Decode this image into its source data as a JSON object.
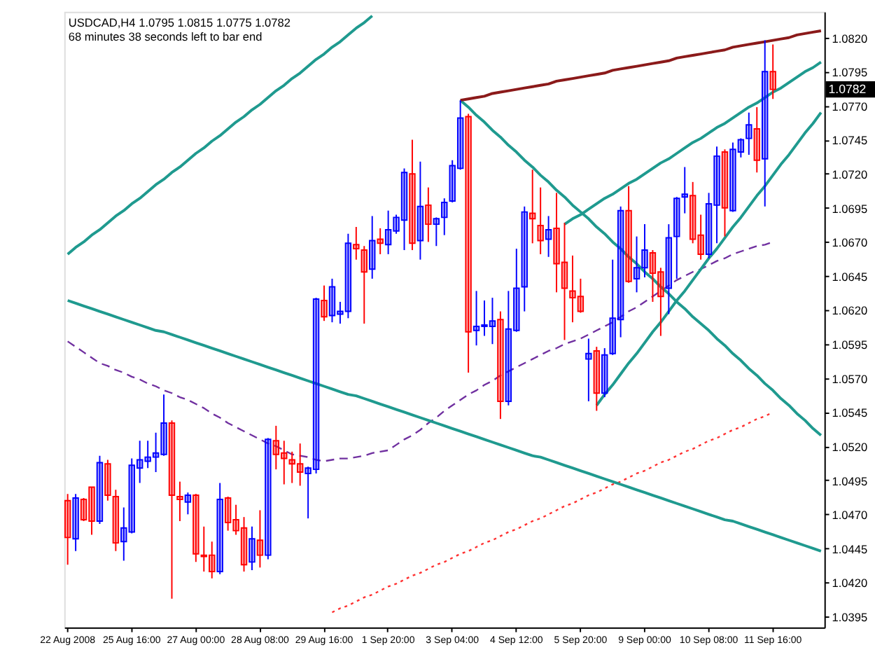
{
  "chart_data": {
    "type": "candlestick",
    "title": "USDCAD,H4 1.0795 1.0815 1.0775 1.0782",
    "subtitle": "68 minutes 38 seconds left to bar end",
    "categories": [
      "22 Aug 2008",
      null,
      null,
      null,
      null,
      null,
      null,
      null,
      "25 Aug 16:00",
      null,
      null,
      null,
      null,
      null,
      null,
      null,
      "27 Aug 00:00",
      null,
      null,
      null,
      null,
      null,
      null,
      null,
      "28 Aug 08:00",
      null,
      null,
      null,
      null,
      null,
      null,
      null,
      "29 Aug 16:00",
      null,
      null,
      null,
      null,
      null,
      null,
      null,
      "1 Sep 20:00",
      null,
      null,
      null,
      null,
      null,
      null,
      null,
      "3 Sep 04:00",
      null,
      null,
      null,
      null,
      null,
      null,
      null,
      "4 Sep 12:00",
      null,
      null,
      null,
      null,
      null,
      null,
      null,
      "5 Sep 20:00",
      null,
      null,
      null,
      null,
      null,
      null,
      null,
      "9 Sep 00:00",
      null,
      null,
      null,
      null,
      null,
      null,
      null,
      "10 Sep 08:00",
      null,
      null,
      null,
      null,
      null,
      null,
      null,
      "11 Sep 16:00",
      null,
      null,
      null,
      null,
      null,
      null
    ],
    "ohlc": [
      [
        1.048,
        1.0485,
        1.0433,
        1.0453
      ],
      [
        1.0452,
        1.0485,
        1.0443,
        1.0482
      ],
      [
        1.0481,
        1.0482,
        1.0465,
        1.0466
      ],
      [
        1.049,
        1.049,
        1.0455,
        1.0465
      ],
      [
        1.0465,
        1.0513,
        1.0463,
        1.0508
      ],
      [
        1.0507,
        1.051,
        1.048,
        1.0484
      ],
      [
        1.0483,
        1.0488,
        1.0443,
        1.0449
      ],
      [
        1.045,
        1.0475,
        1.0436,
        1.046
      ],
      [
        1.0457,
        1.0511,
        1.0456,
        1.0506
      ],
      [
        1.0504,
        1.0524,
        1.0493,
        1.051
      ],
      [
        1.0509,
        1.0524,
        1.0504,
        1.0512
      ],
      [
        1.0512,
        1.053,
        1.0501,
        1.0515
      ],
      [
        1.0514,
        1.0558,
        1.0513,
        1.0537
      ],
      [
        1.0537,
        1.0539,
        1.0408,
        1.0484
      ],
      [
        1.0483,
        1.0494,
        1.0465,
        1.0481
      ],
      [
        1.0479,
        1.0486,
        1.047,
        1.0484
      ],
      [
        1.0484,
        1.0485,
        1.0435,
        1.0441
      ],
      [
        1.044,
        1.0461,
        1.0428,
        1.0439
      ],
      [
        1.044,
        1.045,
        1.0423,
        1.0428
      ],
      [
        1.0428,
        1.0493,
        1.0426,
        1.0481
      ],
      [
        1.0482,
        1.0483,
        1.0458,
        1.0464
      ],
      [
        1.0466,
        1.0477,
        1.0455,
        1.0458
      ],
      [
        1.046,
        1.0468,
        1.0428,
        1.0433
      ],
      [
        1.0435,
        1.0461,
        1.0429,
        1.0452
      ],
      [
        1.0451,
        1.0473,
        1.0431,
        1.044
      ],
      [
        1.044,
        1.0526,
        1.0437,
        1.0525
      ],
      [
        1.0524,
        1.0535,
        1.0503,
        1.0514
      ],
      [
        1.0515,
        1.0524,
        1.0492,
        1.0511
      ],
      [
        1.051,
        1.0516,
        1.0493,
        1.0507
      ],
      [
        1.0507,
        1.0522,
        1.0491,
        1.0501
      ],
      [
        1.05,
        1.0505,
        1.0467,
        1.0504
      ],
      [
        1.0503,
        1.0629,
        1.05,
        1.0628
      ],
      [
        1.0627,
        1.0638,
        1.0612,
        1.0615
      ],
      [
        1.0616,
        1.0643,
        1.0611,
        1.0637
      ],
      [
        1.0617,
        1.0626,
        1.061,
        1.0619
      ],
      [
        1.0619,
        1.0676,
        1.0614,
        1.0669
      ],
      [
        1.0668,
        1.0681,
        1.0657,
        1.0665
      ],
      [
        1.0664,
        1.0667,
        1.061,
        1.0648
      ],
      [
        1.065,
        1.0689,
        1.0643,
        1.0671
      ],
      [
        1.0672,
        1.068,
        1.0661,
        1.0669
      ],
      [
        1.0668,
        1.0693,
        1.0661,
        1.0679
      ],
      [
        1.0678,
        1.069,
        1.0676,
        1.0688
      ],
      [
        1.0686,
        1.0724,
        1.0664,
        1.0721
      ],
      [
        1.072,
        1.0745,
        1.0664,
        1.0669
      ],
      [
        1.0671,
        1.0729,
        1.0657,
        1.0696
      ],
      [
        1.0697,
        1.071,
        1.067,
        1.0683
      ],
      [
        1.0683,
        1.0688,
        1.0667,
        1.0687
      ],
      [
        1.0688,
        1.0702,
        1.0675,
        1.0699
      ],
      [
        1.07,
        1.073,
        1.0699,
        1.0726
      ],
      [
        1.0724,
        1.0774,
        1.0723,
        1.0761
      ],
      [
        1.0762,
        1.0764,
        1.0574,
        1.0604
      ],
      [
        1.0605,
        1.0634,
        1.0594,
        1.0608
      ],
      [
        1.0608,
        1.0627,
        1.0601,
        1.0609
      ],
      [
        1.0608,
        1.0629,
        1.0595,
        1.0612
      ],
      [
        1.0613,
        1.0619,
        1.054,
        1.0553
      ],
      [
        1.0553,
        1.0634,
        1.055,
        1.0606
      ],
      [
        1.0605,
        1.0665,
        1.0604,
        1.0636
      ],
      [
        1.0637,
        1.0696,
        1.0619,
        1.0692
      ],
      [
        1.0691,
        1.0723,
        1.0669,
        1.0687
      ],
      [
        1.0682,
        1.071,
        1.0661,
        1.0671
      ],
      [
        1.0672,
        1.0689,
        1.0659,
        1.0679
      ],
      [
        1.068,
        1.0706,
        1.0633,
        1.0654
      ],
      [
        1.0655,
        1.0684,
        1.0598,
        1.0636
      ],
      [
        1.0634,
        1.066,
        1.0611,
        1.0629
      ],
      [
        1.063,
        1.0643,
        1.0618,
        1.0619
      ],
      [
        1.0584,
        1.0599,
        1.0553,
        1.0588
      ],
      [
        1.059,
        1.0593,
        1.0546,
        1.0559
      ],
      [
        1.0559,
        1.0592,
        1.0556,
        1.0587
      ],
      [
        1.0588,
        1.0657,
        1.0587,
        1.0614
      ],
      [
        1.0613,
        1.0696,
        1.06,
        1.0693
      ],
      [
        1.0693,
        1.0711,
        1.064,
        1.0641
      ],
      [
        1.0643,
        1.0674,
        1.0633,
        1.0651
      ],
      [
        1.0651,
        1.0683,
        1.0644,
        1.0664
      ],
      [
        1.0662,
        1.0664,
        1.0626,
        1.0647
      ],
      [
        1.0648,
        1.0651,
        1.0601,
        1.063
      ],
      [
        1.0636,
        1.0683,
        1.0617,
        1.0673
      ],
      [
        1.0674,
        1.0703,
        1.0643,
        1.0702
      ],
      [
        1.0703,
        1.0725,
        1.0691,
        1.0705
      ],
      [
        1.0704,
        1.0714,
        1.0669,
        1.0672
      ],
      [
        1.0675,
        1.069,
        1.0657,
        1.0661
      ],
      [
        1.0661,
        1.0706,
        1.0658,
        1.0698
      ],
      [
        1.0697,
        1.074,
        1.0669,
        1.0733
      ],
      [
        1.0736,
        1.0738,
        1.0674,
        1.0695
      ],
      [
        1.0693,
        1.0743,
        1.0692,
        1.0738
      ],
      [
        1.0736,
        1.0746,
        1.0732,
        1.0745
      ],
      [
        1.0746,
        1.0765,
        1.0734,
        1.0756
      ],
      [
        1.0753,
        1.0769,
        1.0721,
        1.073
      ],
      [
        1.0731,
        1.0818,
        1.0696,
        1.0795
      ],
      [
        1.0795,
        1.0815,
        1.0775,
        1.0782
      ],
      null,
      null,
      null,
      null,
      null,
      null
    ],
    "colors": [
      "#ff0000",
      "#0000ff",
      "#ff0000",
      "#ff0000",
      "#0000ff",
      "#ff0000",
      "#ff0000",
      "#0000ff",
      "#0000ff",
      "#0000ff",
      "#0000ff",
      "#0000ff",
      "#0000ff",
      "#ff0000",
      "#ff0000",
      "#0000ff",
      "#ff0000",
      "#ff0000",
      "#ff0000",
      "#0000ff",
      "#ff0000",
      "#ff0000",
      "#ff0000",
      "#0000ff",
      "#ff0000",
      "#0000ff",
      "#ff0000",
      "#ff0000",
      "#ff0000",
      "#ff0000",
      "#0000ff",
      "#0000ff",
      "#ff0000",
      "#0000ff",
      "#0000ff",
      "#0000ff",
      "#ff0000",
      "#ff0000",
      "#0000ff",
      "#ff0000",
      "#0000ff",
      "#0000ff",
      "#0000ff",
      "#ff0000",
      "#0000ff",
      "#ff0000",
      "#0000ff",
      "#0000ff",
      "#0000ff",
      "#0000ff",
      "#ff0000",
      "#0000ff",
      "#0000ff",
      "#0000ff",
      "#ff0000",
      "#0000ff",
      "#0000ff",
      "#0000ff",
      "#ff0000",
      "#ff0000",
      "#0000ff",
      "#ff0000",
      "#ff0000",
      "#ff0000",
      "#ff0000",
      "#0000ff",
      "#ff0000",
      "#0000ff",
      "#0000ff",
      "#0000ff",
      "#ff0000",
      "#0000ff",
      "#0000ff",
      "#ff0000",
      "#ff0000",
      "#0000ff",
      "#0000ff",
      "#0000ff",
      "#ff0000",
      "#ff0000",
      "#0000ff",
      "#0000ff",
      "#ff0000",
      "#0000ff",
      "#0000ff",
      "#0000ff",
      "#ff0000",
      "#0000ff",
      "#ff0000",
      null,
      null,
      null,
      null,
      null,
      null
    ],
    "series": [
      {
        "type": "line",
        "color": "#7030a0",
        "line_style": "dashed",
        "values": [
          1.0597,
          1.0593,
          1.0589,
          1.0585,
          1.0581,
          1.0579,
          1.0576,
          1.0574,
          1.0571,
          1.0569,
          1.0566,
          1.0564,
          1.0561,
          1.0559,
          1.0556,
          1.0554,
          1.0551,
          1.0548,
          1.0544,
          1.0541,
          1.0537,
          1.0534,
          1.0531,
          1.0528,
          1.0525,
          1.0522,
          1.052,
          1.0517,
          1.0514,
          1.0513,
          1.0512,
          1.051,
          1.0509,
          1.051,
          1.0511,
          1.0511,
          1.0512,
          1.0513,
          1.0515,
          1.0516,
          1.0517,
          1.0521,
          1.0525,
          1.0528,
          1.0532,
          1.0537,
          1.0541,
          1.0546,
          1.055,
          1.0554,
          1.0558,
          1.0561,
          1.0565,
          1.0568,
          1.0572,
          1.0575,
          1.0578,
          1.0581,
          1.0584,
          1.0587,
          1.059,
          1.0592,
          1.0595,
          1.0597,
          1.0599,
          1.0602,
          1.0605,
          1.0608,
          1.0611,
          1.0615,
          1.0619,
          1.0622,
          1.0626,
          1.063,
          1.0634,
          1.0638,
          1.0642,
          1.0645,
          1.0648,
          1.065,
          1.0653,
          1.0656,
          1.0658,
          1.0661,
          1.0663,
          1.0665,
          1.0667,
          1.0668,
          1.067,
          null,
          null,
          null,
          null,
          null,
          null
        ]
      },
      {
        "type": "line",
        "color": "#ff3030",
        "line_style": "dotted",
        "values": [
          null,
          null,
          null,
          null,
          null,
          null,
          null,
          null,
          null,
          null,
          null,
          null,
          null,
          null,
          null,
          null,
          null,
          null,
          null,
          null,
          null,
          null,
          null,
          null,
          null,
          null,
          null,
          null,
          null,
          null,
          null,
          null,
          null,
          1.0398,
          1.0401,
          1.0403,
          1.0406,
          1.0409,
          1.0411,
          1.0414,
          1.0417,
          1.0419,
          1.0422,
          1.0425,
          1.0427,
          1.043,
          1.0433,
          1.0435,
          1.0438,
          1.0441,
          1.0443,
          1.0446,
          1.0449,
          1.0451,
          1.0454,
          1.0457,
          1.0459,
          1.0462,
          1.0465,
          1.0467,
          1.047,
          1.0473,
          1.0476,
          1.0478,
          1.0481,
          1.0484,
          1.0486,
          1.0489,
          1.0492,
          1.0494,
          1.0497,
          1.05,
          1.0502,
          1.0505,
          1.0508,
          1.051,
          1.0513,
          1.0516,
          1.0518,
          1.0521,
          1.0524,
          1.0526,
          1.0529,
          1.0532,
          1.0534,
          1.0537,
          1.054,
          1.0542,
          1.0545,
          null,
          null,
          null,
          null,
          null,
          null
        ]
      },
      {
        "type": "line",
        "color": "#1f9a8f",
        "line_style": "solid",
        "values": [
          1.0661,
          1.0666,
          1.067,
          1.0675,
          1.0679,
          1.0684,
          1.0689,
          1.0693,
          1.0698,
          1.0702,
          1.0707,
          1.0712,
          1.0716,
          1.0721,
          1.0725,
          1.073,
          1.0735,
          1.0739,
          1.0744,
          1.0748,
          1.0753,
          1.0758,
          1.0762,
          1.0767,
          1.0771,
          1.0776,
          1.0781,
          1.0785,
          1.079,
          1.0794,
          1.0799,
          1.0804,
          1.0808,
          1.0813,
          1.0817,
          1.0822,
          1.0827,
          1.0831,
          1.0836,
          null,
          null,
          null,
          null,
          null,
          null,
          null,
          null,
          null,
          null,
          null,
          null,
          null,
          null,
          null,
          null,
          null,
          null,
          null,
          null,
          null,
          null,
          null,
          null,
          null,
          null,
          null,
          null,
          null,
          null,
          null,
          null,
          null,
          null,
          null,
          null,
          null,
          null,
          null,
          null,
          null,
          null,
          null,
          null,
          null,
          null,
          null,
          null,
          null,
          null,
          null,
          null,
          null,
          null,
          null,
          null
        ]
      },
      {
        "type": "line",
        "color": "#1f9a8f",
        "line_style": "solid",
        "values": [
          1.0627,
          1.0625,
          1.0623,
          1.0621,
          1.0619,
          1.0617,
          1.0615,
          1.0613,
          1.0611,
          1.0609,
          1.0607,
          1.0605,
          1.0604,
          1.0602,
          1.06,
          1.0598,
          1.0596,
          1.0594,
          1.0592,
          1.059,
          1.0588,
          1.0586,
          1.0584,
          1.0582,
          1.058,
          1.0578,
          1.0576,
          1.0574,
          1.0572,
          1.057,
          1.0568,
          1.0566,
          1.0564,
          1.0562,
          1.056,
          1.0558,
          1.0557,
          1.0555,
          1.0553,
          1.0551,
          1.0549,
          1.0547,
          1.0545,
          1.0543,
          1.0541,
          1.0539,
          1.0537,
          1.0535,
          1.0533,
          1.0531,
          1.0529,
          1.0527,
          1.0525,
          1.0523,
          1.0521,
          1.0519,
          1.0517,
          1.0515,
          1.0513,
          1.0512,
          1.051,
          1.0508,
          1.0506,
          1.0504,
          1.0502,
          1.05,
          1.0498,
          1.0496,
          1.0494,
          1.0492,
          1.049,
          1.0488,
          1.0486,
          1.0484,
          1.0482,
          1.048,
          1.0478,
          1.0476,
          1.0474,
          1.0472,
          1.047,
          1.0468,
          1.0466,
          1.0465,
          1.0463,
          1.0461,
          1.0459,
          1.0457,
          1.0455,
          1.0453,
          1.0451,
          1.0449,
          1.0447,
          1.0445,
          1.0443
        ]
      },
      {
        "type": "line",
        "color": "#1f9a8f",
        "line_style": "solid",
        "values": [
          null,
          null,
          null,
          null,
          null,
          null,
          null,
          null,
          null,
          null,
          null,
          null,
          null,
          null,
          null,
          null,
          null,
          null,
          null,
          null,
          null,
          null,
          null,
          null,
          null,
          null,
          null,
          null,
          null,
          null,
          null,
          null,
          null,
          null,
          null,
          null,
          null,
          null,
          null,
          null,
          null,
          null,
          null,
          null,
          null,
          null,
          null,
          null,
          null,
          1.0774,
          1.0769,
          1.0763,
          1.0758,
          1.0752,
          1.0747,
          1.0741,
          1.0736,
          1.073,
          1.0725,
          1.0719,
          1.0714,
          1.0708,
          1.0703,
          1.0697,
          1.0692,
          1.0687,
          1.0681,
          1.0676,
          1.067,
          1.0665,
          1.0659,
          1.0654,
          1.0648,
          1.0643,
          1.0637,
          1.0632,
          1.0626,
          1.0621,
          1.0615,
          1.061,
          1.0605,
          1.0599,
          1.0594,
          1.0588,
          1.0583,
          1.0577,
          1.0572,
          1.0566,
          1.0561,
          1.0555,
          1.055,
          1.0544,
          1.0539,
          1.0533,
          1.0528
        ]
      },
      {
        "type": "line",
        "color": "#8b1a1a",
        "line_style": "solid",
        "values": [
          null,
          null,
          null,
          null,
          null,
          null,
          null,
          null,
          null,
          null,
          null,
          null,
          null,
          null,
          null,
          null,
          null,
          null,
          null,
          null,
          null,
          null,
          null,
          null,
          null,
          null,
          null,
          null,
          null,
          null,
          null,
          null,
          null,
          null,
          null,
          null,
          null,
          null,
          null,
          null,
          null,
          null,
          null,
          null,
          null,
          null,
          null,
          null,
          null,
          1.0774,
          1.0775,
          1.0776,
          1.0777,
          1.0779,
          1.078,
          1.0781,
          1.0782,
          1.0783,
          1.0784,
          1.0785,
          1.0786,
          1.0788,
          1.0789,
          1.079,
          1.0791,
          1.0792,
          1.0793,
          1.0794,
          1.0796,
          1.0797,
          1.0798,
          1.0799,
          1.08,
          1.0801,
          1.0802,
          1.0803,
          1.0805,
          1.0806,
          1.0807,
          1.0808,
          1.0809,
          1.081,
          1.0811,
          1.0813,
          1.0814,
          1.0815,
          1.0816,
          1.0817,
          1.0818,
          1.0819,
          1.082,
          1.0822,
          1.0823,
          1.0824,
          1.0825
        ]
      },
      {
        "type": "line",
        "color": "#1f9a8f",
        "line_style": "solid",
        "values": [
          null,
          null,
          null,
          null,
          null,
          null,
          null,
          null,
          null,
          null,
          null,
          null,
          null,
          null,
          null,
          null,
          null,
          null,
          null,
          null,
          null,
          null,
          null,
          null,
          null,
          null,
          null,
          null,
          null,
          null,
          null,
          null,
          null,
          null,
          null,
          null,
          null,
          null,
          null,
          null,
          null,
          null,
          null,
          null,
          null,
          null,
          null,
          null,
          null,
          null,
          null,
          null,
          null,
          null,
          null,
          null,
          null,
          null,
          null,
          null,
          null,
          null,
          1.0683,
          1.0687,
          1.069,
          1.0694,
          1.0698,
          1.0702,
          1.0705,
          1.0709,
          1.0713,
          1.0716,
          1.072,
          1.0724,
          1.0728,
          1.0731,
          1.0735,
          1.0739,
          1.0743,
          1.0746,
          1.075,
          1.0754,
          1.0757,
          1.0761,
          1.0765,
          1.0769,
          1.0772,
          1.0776,
          1.078,
          1.0783,
          1.0787,
          1.0791,
          1.0795,
          1.0798,
          1.0802
        ]
      },
      {
        "type": "line",
        "color": "#1f9a8f",
        "line_style": "solid",
        "values": [
          null,
          null,
          null,
          null,
          null,
          null,
          null,
          null,
          null,
          null,
          null,
          null,
          null,
          null,
          null,
          null,
          null,
          null,
          null,
          null,
          null,
          null,
          null,
          null,
          null,
          null,
          null,
          null,
          null,
          null,
          null,
          null,
          null,
          null,
          null,
          null,
          null,
          null,
          null,
          null,
          null,
          null,
          null,
          null,
          null,
          null,
          null,
          null,
          null,
          null,
          null,
          null,
          null,
          null,
          null,
          null,
          null,
          null,
          null,
          null,
          null,
          null,
          null,
          null,
          null,
          null,
          1.055,
          1.0558,
          1.0565,
          1.0573,
          1.0581,
          1.0588,
          1.0596,
          1.0604,
          1.0611,
          1.0619,
          1.0627,
          1.0634,
          1.0642,
          1.065,
          1.0658,
          1.0665,
          1.0673,
          1.0681,
          1.0688,
          1.0696,
          1.0704,
          1.0711,
          1.0719,
          1.0727,
          1.0734,
          1.0742,
          1.075,
          1.0757,
          1.0765
        ]
      }
    ],
    "ylim": [
      1.0387,
      1.0839
    ],
    "yticks": [
      {
        "value": 1.0395,
        "label": "1.0395"
      },
      {
        "value": 1.042,
        "label": "1.0420"
      },
      1.0445,
      {
        "value": 1.047,
        "label": "1.0470"
      },
      1.0495,
      {
        "value": 1.052,
        "label": "1.0520"
      },
      1.0545,
      {
        "value": 1.057,
        "label": "1.0570"
      },
      1.0595,
      {
        "value": 1.062,
        "label": "1.0620"
      },
      1.0645,
      {
        "value": 1.067,
        "label": "1.0670"
      },
      1.0695,
      {
        "value": 1.072,
        "label": "1.0720"
      },
      1.0745,
      {
        "value": 1.077,
        "label": "1.0770"
      },
      1.0795,
      {
        "value": 1.082,
        "label": "1.0820"
      }
    ],
    "annotations": [
      "1.0782"
    ]
  }
}
